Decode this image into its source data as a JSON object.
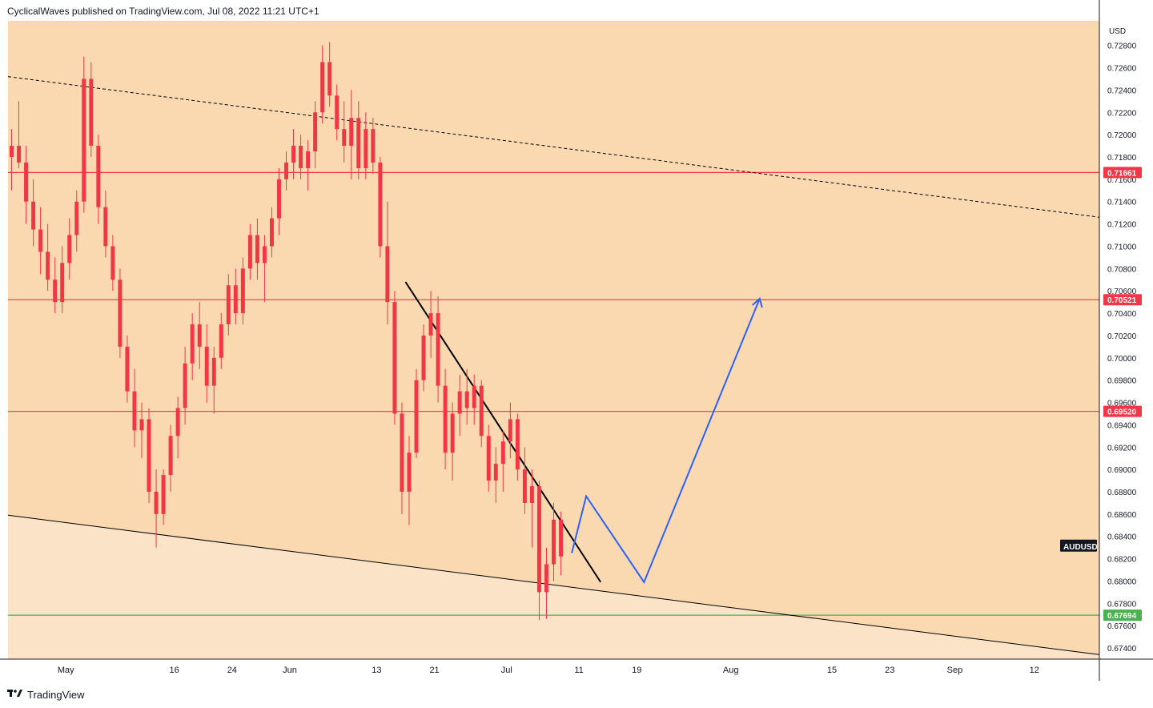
{
  "header": {
    "publisher_line": "CyclicalWaves published on TradingView.com, Jul 08, 2022 11:21 UTC+1"
  },
  "footer": {
    "brand": "TradingView",
    "logo_icon": "tradingview-logo-icon"
  },
  "colors": {
    "plot_bg": "#fad9b1",
    "lower_zone_bg": "#fbe3c7",
    "resistance_line": "#f23645",
    "support_line": "#4caf50",
    "projection": "#2962ff",
    "trendline": "#000000",
    "candle": "#f23645"
  },
  "chart_data": {
    "type": "candlestick",
    "symbol": "AUDUSD",
    "currency": "USD",
    "x_axis": {
      "type": "date",
      "range": [
        "2022-04-23",
        "2022-09-21"
      ],
      "ticks": [
        {
          "date": "2022-05-01",
          "label": "May"
        },
        {
          "date": "2022-05-16",
          "label": "16"
        },
        {
          "date": "2022-05-24",
          "label": "24"
        },
        {
          "date": "2022-06-01",
          "label": "Jun"
        },
        {
          "date": "2022-06-13",
          "label": "13"
        },
        {
          "date": "2022-06-21",
          "label": "21"
        },
        {
          "date": "2022-07-01",
          "label": "Jul"
        },
        {
          "date": "2022-07-11",
          "label": "11"
        },
        {
          "date": "2022-07-19",
          "label": "19"
        },
        {
          "date": "2022-08-01",
          "label": "Aug"
        },
        {
          "date": "2022-08-15",
          "label": "15"
        },
        {
          "date": "2022-08-23",
          "label": "23"
        },
        {
          "date": "2022-09-01",
          "label": "Sep"
        },
        {
          "date": "2022-09-12",
          "label": "12"
        }
      ]
    },
    "y_axis": {
      "range": [
        0.673,
        0.7302
      ],
      "ticks": [
        "0.72800",
        "0.72600",
        "0.72400",
        "0.72200",
        "0.72000",
        "0.71800",
        "0.71600",
        "0.71400",
        "0.71200",
        "0.71000",
        "0.70800",
        "0.70600",
        "0.70400",
        "0.70200",
        "0.70000",
        "0.69800",
        "0.69600",
        "0.69400",
        "0.69200",
        "0.69000",
        "0.68800",
        "0.68600",
        "0.68400",
        "0.68200",
        "0.68000",
        "0.67800",
        "0.67600",
        "0.67400"
      ]
    },
    "horizontal_levels": [
      {
        "value": 0.71661,
        "label": "0.71661",
        "color": "#f23645"
      },
      {
        "value": 0.70521,
        "label": "0.70521",
        "color": "#f23645"
      },
      {
        "value": 0.6952,
        "label": "0.69520",
        "color": "#f23645"
      },
      {
        "value": 0.67694,
        "label": "0.67694",
        "color": "#4caf50"
      }
    ],
    "trendlines": [
      {
        "name": "upper-channel",
        "style": "dashed",
        "points": [
          [
            "2022-04-23",
            0.7252
          ],
          [
            "2022-09-21",
            0.7126
          ]
        ]
      },
      {
        "name": "lower-channel",
        "style": "solid",
        "points": [
          [
            "2022-04-23",
            0.6859
          ],
          [
            "2022-09-21",
            0.6734
          ]
        ]
      },
      {
        "name": "descending",
        "style": "solid",
        "points": [
          [
            "2022-06-17",
            0.7068
          ],
          [
            "2022-07-14",
            0.6799
          ]
        ]
      }
    ],
    "projection_path": [
      [
        "2022-07-10",
        0.6825
      ],
      [
        "2022-07-12",
        0.6876
      ],
      [
        "2022-07-20",
        0.6799
      ],
      [
        "2022-08-05",
        0.7053
      ]
    ],
    "projection_arrowhead_at": [
      "2022-08-05",
      0.7053
    ],
    "price_tag": {
      "label": "AUDUSD",
      "value": 0.6822
    },
    "candles": [
      {
        "d": "2022-04-23",
        "o": 0.718,
        "h": 0.7205,
        "l": 0.715,
        "c": 0.719
      },
      {
        "d": "2022-04-24",
        "o": 0.719,
        "h": 0.723,
        "l": 0.717,
        "c": 0.7175
      },
      {
        "d": "2022-04-25",
        "o": 0.7175,
        "h": 0.719,
        "l": 0.712,
        "c": 0.714
      },
      {
        "d": "2022-04-26",
        "o": 0.714,
        "h": 0.716,
        "l": 0.71,
        "c": 0.7115
      },
      {
        "d": "2022-04-27",
        "o": 0.7115,
        "h": 0.7135,
        "l": 0.7075,
        "c": 0.7095
      },
      {
        "d": "2022-04-28",
        "o": 0.7095,
        "h": 0.712,
        "l": 0.706,
        "c": 0.707
      },
      {
        "d": "2022-04-29",
        "o": 0.707,
        "h": 0.709,
        "l": 0.704,
        "c": 0.705
      },
      {
        "d": "2022-04-30",
        "o": 0.705,
        "h": 0.71,
        "l": 0.704,
        "c": 0.7085
      },
      {
        "d": "2022-05-01",
        "o": 0.7085,
        "h": 0.7125,
        "l": 0.707,
        "c": 0.711
      },
      {
        "d": "2022-05-02",
        "o": 0.711,
        "h": 0.715,
        "l": 0.7095,
        "c": 0.714
      },
      {
        "d": "2022-05-03",
        "o": 0.714,
        "h": 0.727,
        "l": 0.713,
        "c": 0.725
      },
      {
        "d": "2022-05-04",
        "o": 0.725,
        "h": 0.7265,
        "l": 0.718,
        "c": 0.719
      },
      {
        "d": "2022-05-05",
        "o": 0.719,
        "h": 0.72,
        "l": 0.712,
        "c": 0.7135
      },
      {
        "d": "2022-05-06",
        "o": 0.7135,
        "h": 0.715,
        "l": 0.709,
        "c": 0.71
      },
      {
        "d": "2022-05-07",
        "o": 0.71,
        "h": 0.711,
        "l": 0.706,
        "c": 0.707
      },
      {
        "d": "2022-05-08",
        "o": 0.707,
        "h": 0.708,
        "l": 0.7,
        "c": 0.701
      },
      {
        "d": "2022-05-09",
        "o": 0.701,
        "h": 0.702,
        "l": 0.696,
        "c": 0.697
      },
      {
        "d": "2022-05-10",
        "o": 0.697,
        "h": 0.699,
        "l": 0.692,
        "c": 0.6935
      },
      {
        "d": "2022-05-11",
        "o": 0.6935,
        "h": 0.696,
        "l": 0.691,
        "c": 0.6945
      },
      {
        "d": "2022-05-12",
        "o": 0.6945,
        "h": 0.6955,
        "l": 0.687,
        "c": 0.688
      },
      {
        "d": "2022-05-13",
        "o": 0.688,
        "h": 0.69,
        "l": 0.683,
        "c": 0.686
      },
      {
        "d": "2022-05-14",
        "o": 0.686,
        "h": 0.69,
        "l": 0.685,
        "c": 0.6895
      },
      {
        "d": "2022-05-15",
        "o": 0.6895,
        "h": 0.694,
        "l": 0.688,
        "c": 0.693
      },
      {
        "d": "2022-05-16",
        "o": 0.693,
        "h": 0.6965,
        "l": 0.691,
        "c": 0.6955
      },
      {
        "d": "2022-05-17",
        "o": 0.6955,
        "h": 0.701,
        "l": 0.694,
        "c": 0.6995
      },
      {
        "d": "2022-05-18",
        "o": 0.6995,
        "h": 0.704,
        "l": 0.698,
        "c": 0.703
      },
      {
        "d": "2022-05-19",
        "o": 0.703,
        "h": 0.705,
        "l": 0.699,
        "c": 0.701
      },
      {
        "d": "2022-05-20",
        "o": 0.701,
        "h": 0.703,
        "l": 0.696,
        "c": 0.6975
      },
      {
        "d": "2022-05-21",
        "o": 0.6975,
        "h": 0.701,
        "l": 0.695,
        "c": 0.7
      },
      {
        "d": "2022-05-22",
        "o": 0.7,
        "h": 0.704,
        "l": 0.699,
        "c": 0.703
      },
      {
        "d": "2022-05-23",
        "o": 0.703,
        "h": 0.7075,
        "l": 0.702,
        "c": 0.7065
      },
      {
        "d": "2022-05-24",
        "o": 0.7065,
        "h": 0.708,
        "l": 0.703,
        "c": 0.704
      },
      {
        "d": "2022-05-25",
        "o": 0.704,
        "h": 0.709,
        "l": 0.703,
        "c": 0.708
      },
      {
        "d": "2022-05-26",
        "o": 0.708,
        "h": 0.712,
        "l": 0.707,
        "c": 0.711
      },
      {
        "d": "2022-05-27",
        "o": 0.711,
        "h": 0.7125,
        "l": 0.707,
        "c": 0.7085
      },
      {
        "d": "2022-05-28",
        "o": 0.7085,
        "h": 0.711,
        "l": 0.705,
        "c": 0.71
      },
      {
        "d": "2022-05-29",
        "o": 0.71,
        "h": 0.7135,
        "l": 0.709,
        "c": 0.7125
      },
      {
        "d": "2022-05-30",
        "o": 0.7125,
        "h": 0.717,
        "l": 0.711,
        "c": 0.716
      },
      {
        "d": "2022-05-31",
        "o": 0.716,
        "h": 0.7185,
        "l": 0.715,
        "c": 0.7175
      },
      {
        "d": "2022-06-01",
        "o": 0.7175,
        "h": 0.7205,
        "l": 0.716,
        "c": 0.719
      },
      {
        "d": "2022-06-02",
        "o": 0.719,
        "h": 0.72,
        "l": 0.716,
        "c": 0.717
      },
      {
        "d": "2022-06-03",
        "o": 0.717,
        "h": 0.7195,
        "l": 0.715,
        "c": 0.7185
      },
      {
        "d": "2022-06-04",
        "o": 0.7185,
        "h": 0.723,
        "l": 0.717,
        "c": 0.722
      },
      {
        "d": "2022-06-05",
        "o": 0.722,
        "h": 0.728,
        "l": 0.721,
        "c": 0.7265
      },
      {
        "d": "2022-06-06",
        "o": 0.7265,
        "h": 0.7283,
        "l": 0.7225,
        "c": 0.7235
      },
      {
        "d": "2022-06-07",
        "o": 0.7235,
        "h": 0.7245,
        "l": 0.7195,
        "c": 0.7205
      },
      {
        "d": "2022-06-08",
        "o": 0.7205,
        "h": 0.723,
        "l": 0.7175,
        "c": 0.719
      },
      {
        "d": "2022-06-09",
        "o": 0.719,
        "h": 0.724,
        "l": 0.716,
        "c": 0.7215
      },
      {
        "d": "2022-06-10",
        "o": 0.7215,
        "h": 0.723,
        "l": 0.716,
        "c": 0.717
      },
      {
        "d": "2022-06-11",
        "o": 0.717,
        "h": 0.722,
        "l": 0.716,
        "c": 0.7205
      },
      {
        "d": "2022-06-12",
        "o": 0.7205,
        "h": 0.7215,
        "l": 0.7165,
        "c": 0.7175
      },
      {
        "d": "2022-06-13",
        "o": 0.7175,
        "h": 0.718,
        "l": 0.709,
        "c": 0.71
      },
      {
        "d": "2022-06-14",
        "o": 0.71,
        "h": 0.714,
        "l": 0.703,
        "c": 0.705
      },
      {
        "d": "2022-06-15",
        "o": 0.705,
        "h": 0.706,
        "l": 0.694,
        "c": 0.695
      },
      {
        "d": "2022-06-16",
        "o": 0.695,
        "h": 0.696,
        "l": 0.686,
        "c": 0.688
      },
      {
        "d": "2022-06-17",
        "o": 0.688,
        "h": 0.693,
        "l": 0.685,
        "c": 0.6915
      },
      {
        "d": "2022-06-18",
        "o": 0.6915,
        "h": 0.699,
        "l": 0.691,
        "c": 0.698
      },
      {
        "d": "2022-06-19",
        "o": 0.698,
        "h": 0.703,
        "l": 0.697,
        "c": 0.702
      },
      {
        "d": "2022-06-20",
        "o": 0.702,
        "h": 0.706,
        "l": 0.7,
        "c": 0.704
      },
      {
        "d": "2022-06-21",
        "o": 0.704,
        "h": 0.7055,
        "l": 0.696,
        "c": 0.6975
      },
      {
        "d": "2022-06-22",
        "o": 0.6975,
        "h": 0.699,
        "l": 0.69,
        "c": 0.6915
      },
      {
        "d": "2022-06-23",
        "o": 0.6915,
        "h": 0.696,
        "l": 0.689,
        "c": 0.695
      },
      {
        "d": "2022-06-24",
        "o": 0.695,
        "h": 0.6985,
        "l": 0.693,
        "c": 0.697
      },
      {
        "d": "2022-06-25",
        "o": 0.697,
        "h": 0.699,
        "l": 0.694,
        "c": 0.6955
      },
      {
        "d": "2022-06-26",
        "o": 0.6955,
        "h": 0.6985,
        "l": 0.694,
        "c": 0.6975
      },
      {
        "d": "2022-06-27",
        "o": 0.6975,
        "h": 0.698,
        "l": 0.692,
        "c": 0.693
      },
      {
        "d": "2022-06-28",
        "o": 0.693,
        "h": 0.694,
        "l": 0.688,
        "c": 0.689
      },
      {
        "d": "2022-06-29",
        "o": 0.689,
        "h": 0.692,
        "l": 0.687,
        "c": 0.6905
      },
      {
        "d": "2022-06-30",
        "o": 0.6905,
        "h": 0.6935,
        "l": 0.688,
        "c": 0.6925
      },
      {
        "d": "2022-07-01",
        "o": 0.6925,
        "h": 0.696,
        "l": 0.691,
        "c": 0.6945
      },
      {
        "d": "2022-07-02",
        "o": 0.6945,
        "h": 0.695,
        "l": 0.689,
        "c": 0.69
      },
      {
        "d": "2022-07-03",
        "o": 0.69,
        "h": 0.692,
        "l": 0.686,
        "c": 0.687
      },
      {
        "d": "2022-07-04",
        "o": 0.687,
        "h": 0.69,
        "l": 0.683,
        "c": 0.6885
      },
      {
        "d": "2022-07-05",
        "o": 0.6885,
        "h": 0.689,
        "l": 0.6765,
        "c": 0.679
      },
      {
        "d": "2022-07-06",
        "o": 0.679,
        "h": 0.683,
        "l": 0.6766,
        "c": 0.6815
      },
      {
        "d": "2022-07-07",
        "o": 0.6815,
        "h": 0.687,
        "l": 0.68,
        "c": 0.6855
      },
      {
        "d": "2022-07-08",
        "o": 0.6855,
        "h": 0.6862,
        "l": 0.6805,
        "c": 0.6822
      }
    ]
  }
}
